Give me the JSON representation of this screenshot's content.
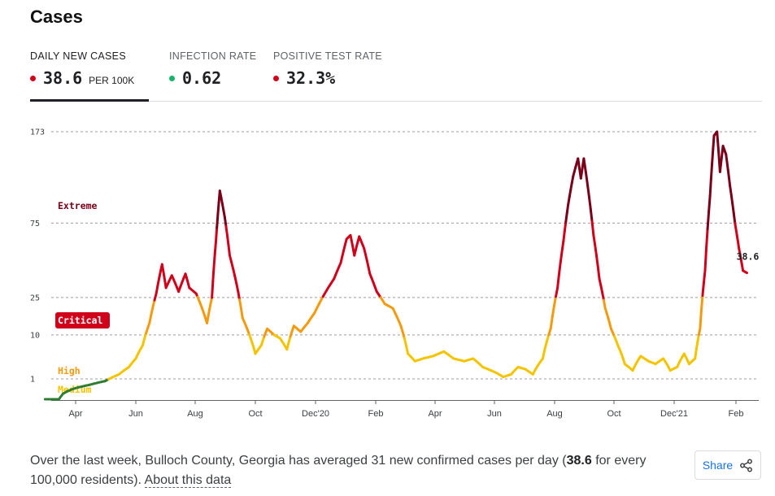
{
  "title": "Cases",
  "tabs": [
    {
      "label": "DAILY NEW CASES",
      "value": "38.6",
      "unit": "PER 100K",
      "dot_color": "#d0021b",
      "active": true
    },
    {
      "label": "INFECTION RATE",
      "value": "0.62",
      "unit": "",
      "dot_color": "#18b46c",
      "active": false
    },
    {
      "label": "POSITIVE TEST RATE",
      "value": "32.3%",
      "unit": "",
      "dot_color": "#d0021b",
      "active": false
    }
  ],
  "chart_data": {
    "type": "line",
    "y_scale": "sqrt",
    "y_range": [
      0,
      173
    ],
    "y_ticks": [
      1,
      10,
      25,
      75,
      173
    ],
    "x_ticks": [
      "Apr",
      "Jun",
      "Aug",
      "Oct",
      "Dec'20",
      "Feb",
      "Apr",
      "Jun",
      "Aug",
      "Oct",
      "Dec'21",
      "Feb"
    ],
    "x_range": [
      "2020-03-01",
      "2022-02-14"
    ],
    "last_value_label": "38.6",
    "bands": [
      {
        "label": "Medium",
        "min": 1,
        "max": 10,
        "color": "#f5c400"
      },
      {
        "label": "High",
        "min": 10,
        "max": 25,
        "color": "#f59a0e"
      },
      {
        "label": "Critical",
        "min": 25,
        "max": 75,
        "color": "#d0021b"
      },
      {
        "label": "Extreme",
        "min": 75,
        "max": 173,
        "color": "#7a0019"
      }
    ],
    "low_color": "#2e7d32",
    "series": [
      {
        "values": [
          [
            "2020-03-01",
            0
          ],
          [
            "2020-03-15",
            0
          ],
          [
            "2020-04-01",
            0.3
          ],
          [
            "2020-04-15",
            0.5
          ],
          [
            "2020-05-01",
            0.8
          ],
          [
            "2020-05-15",
            1.5
          ],
          [
            "2020-05-25",
            2.5
          ],
          [
            "2020-06-01",
            4
          ],
          [
            "2020-06-08",
            7
          ],
          [
            "2020-06-15",
            14
          ],
          [
            "2020-06-22",
            27
          ],
          [
            "2020-06-28",
            44
          ],
          [
            "2020-07-02",
            30
          ],
          [
            "2020-07-08",
            37
          ],
          [
            "2020-07-15",
            28
          ],
          [
            "2020-07-22",
            38
          ],
          [
            "2020-07-26",
            30
          ],
          [
            "2020-08-02",
            27
          ],
          [
            "2020-08-08",
            20
          ],
          [
            "2020-08-13",
            14
          ],
          [
            "2020-08-18",
            25
          ],
          [
            "2020-08-22",
            60
          ],
          [
            "2020-08-26",
            105
          ],
          [
            "2020-08-31",
            80
          ],
          [
            "2020-09-05",
            50
          ],
          [
            "2020-09-12",
            32
          ],
          [
            "2020-09-18",
            16
          ],
          [
            "2020-09-25",
            10
          ],
          [
            "2020-10-01",
            5
          ],
          [
            "2020-10-07",
            7
          ],
          [
            "2020-10-13",
            12
          ],
          [
            "2020-10-20",
            10
          ],
          [
            "2020-10-26",
            9
          ],
          [
            "2020-11-02",
            6
          ],
          [
            "2020-11-09",
            13
          ],
          [
            "2020-11-16",
            11
          ],
          [
            "2020-11-23",
            14
          ],
          [
            "2020-11-30",
            18
          ],
          [
            "2020-12-07",
            24
          ],
          [
            "2020-12-14",
            30
          ],
          [
            "2020-12-20",
            35
          ],
          [
            "2020-12-27",
            45
          ],
          [
            "2021-01-02",
            62
          ],
          [
            "2021-01-06",
            65
          ],
          [
            "2021-01-10",
            50
          ],
          [
            "2021-01-15",
            64
          ],
          [
            "2021-01-20",
            55
          ],
          [
            "2021-01-26",
            38
          ],
          [
            "2021-02-02",
            28
          ],
          [
            "2021-02-10",
            22
          ],
          [
            "2021-02-18",
            20
          ],
          [
            "2021-02-26",
            13
          ],
          [
            "2021-03-05",
            5
          ],
          [
            "2021-03-12",
            3.5
          ],
          [
            "2021-03-20",
            4
          ],
          [
            "2021-03-30",
            4.5
          ],
          [
            "2021-04-10",
            5.5
          ],
          [
            "2021-04-20",
            4
          ],
          [
            "2021-05-01",
            3.5
          ],
          [
            "2021-05-10",
            4
          ],
          [
            "2021-05-20",
            2.5
          ],
          [
            "2021-06-01",
            1.8
          ],
          [
            "2021-06-10",
            1.2
          ],
          [
            "2021-06-18",
            1.5
          ],
          [
            "2021-06-25",
            2.5
          ],
          [
            "2021-07-02",
            2.2
          ],
          [
            "2021-07-10",
            1.5
          ],
          [
            "2021-07-20",
            4
          ],
          [
            "2021-07-28",
            12
          ],
          [
            "2021-08-04",
            30
          ],
          [
            "2021-08-10",
            60
          ],
          [
            "2021-08-15",
            92
          ],
          [
            "2021-08-20",
            120
          ],
          [
            "2021-08-25",
            140
          ],
          [
            "2021-08-28",
            118
          ],
          [
            "2021-08-31",
            140
          ],
          [
            "2021-09-04",
            110
          ],
          [
            "2021-09-10",
            65
          ],
          [
            "2021-09-16",
            35
          ],
          [
            "2021-09-22",
            20
          ],
          [
            "2021-09-28",
            12
          ],
          [
            "2021-10-05",
            7
          ],
          [
            "2021-10-12",
            3
          ],
          [
            "2021-10-20",
            2
          ],
          [
            "2021-10-28",
            4.5
          ],
          [
            "2021-11-05",
            3.5
          ],
          [
            "2021-11-12",
            3
          ],
          [
            "2021-11-20",
            4
          ],
          [
            "2021-11-27",
            2
          ],
          [
            "2021-12-04",
            2.5
          ],
          [
            "2021-12-11",
            5
          ],
          [
            "2021-12-16",
            3
          ],
          [
            "2021-12-22",
            4
          ],
          [
            "2021-12-27",
            12
          ],
          [
            "2022-01-01",
            40
          ],
          [
            "2022-01-06",
            100
          ],
          [
            "2022-01-10",
            168
          ],
          [
            "2022-01-13",
            173
          ],
          [
            "2022-01-16",
            125
          ],
          [
            "2022-01-19",
            155
          ],
          [
            "2022-01-22",
            145
          ],
          [
            "2022-01-26",
            110
          ],
          [
            "2022-01-31",
            75
          ],
          [
            "2022-02-04",
            55
          ],
          [
            "2022-02-08",
            40
          ],
          [
            "2022-02-12",
            38.6
          ]
        ]
      }
    ]
  },
  "summary": {
    "text_before": "Over the last week, Bulloch County, Georgia has averaged 31 new confirmed cases per day (",
    "highlight": "38.6",
    "text_after": " for every 100,000 residents). ",
    "link_text": "About this data"
  },
  "share_label": "Share",
  "icons": {
    "share": "share-icon"
  }
}
